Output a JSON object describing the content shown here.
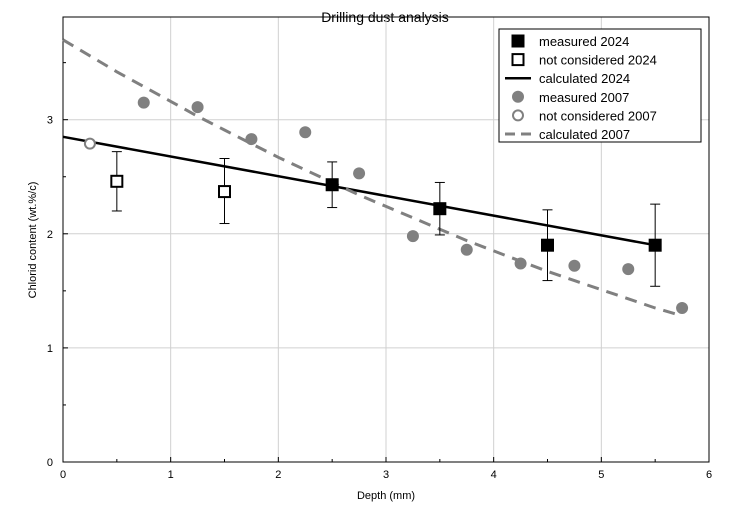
{
  "chart_data": {
    "type": "scatter",
    "title": "Drilling dust analysis",
    "xlabel": "Depth (mm)",
    "ylabel": "Chlorid content (wt.%/c)",
    "xlim": [
      0,
      6
    ],
    "ylim": [
      0,
      3.9
    ],
    "x_ticks": [
      "0",
      "1",
      "2",
      "3",
      "4",
      "5",
      "6"
    ],
    "y_ticks": [
      "0",
      "1",
      "2",
      "3"
    ],
    "grid": true,
    "legend_position": "top-right",
    "series": [
      {
        "name": "measured 2024",
        "kind": "points",
        "marker": "filled-square",
        "color": "#000000",
        "x": [
          2.5,
          3.5,
          4.5,
          5.5
        ],
        "y": [
          2.43,
          2.22,
          1.9,
          1.9
        ],
        "err_low": [
          2.23,
          1.99,
          1.59,
          1.54
        ],
        "err_high": [
          2.63,
          2.45,
          2.21,
          2.26
        ]
      },
      {
        "name": "not considered 2024",
        "kind": "points",
        "marker": "open-square",
        "color": "#000000",
        "x": [
          0.5,
          1.5
        ],
        "y": [
          2.46,
          2.37
        ],
        "err_low": [
          2.2,
          2.09
        ],
        "err_high": [
          2.72,
          2.66
        ]
      },
      {
        "name": "calculated 2024",
        "kind": "line",
        "style": "solid",
        "color": "#000000",
        "x": [
          0,
          5.5
        ],
        "y": [
          2.85,
          1.9
        ]
      },
      {
        "name": "measured 2007",
        "kind": "points",
        "marker": "filled-circle",
        "color": "#808080",
        "x": [
          0.75,
          1.25,
          1.75,
          2.25,
          2.75,
          3.25,
          3.75,
          4.25,
          4.75,
          5.25,
          5.75
        ],
        "y": [
          3.15,
          3.11,
          2.83,
          2.89,
          2.53,
          1.98,
          1.86,
          1.74,
          1.72,
          1.69,
          1.35
        ]
      },
      {
        "name": "not considered 2007",
        "kind": "points",
        "marker": "open-circle",
        "color": "#808080",
        "x": [
          0.25
        ],
        "y": [
          2.79
        ]
      },
      {
        "name": "calculated 2007",
        "kind": "line",
        "style": "dashed",
        "color": "#808080",
        "x": [
          0,
          0.25,
          0.5,
          0.75,
          1,
          1.25,
          1.5,
          1.75,
          2,
          2.25,
          2.5,
          2.75,
          3,
          3.25,
          3.5,
          3.75,
          4,
          4.25,
          4.5,
          4.75,
          5,
          5.25,
          5.5,
          5.75
        ],
        "y": [
          3.7,
          3.56,
          3.42,
          3.29,
          3.16,
          3.03,
          2.91,
          2.79,
          2.67,
          2.56,
          2.45,
          2.34,
          2.24,
          2.14,
          2.04,
          1.94,
          1.85,
          1.76,
          1.67,
          1.59,
          1.51,
          1.43,
          1.35,
          1.28
        ]
      }
    ]
  }
}
